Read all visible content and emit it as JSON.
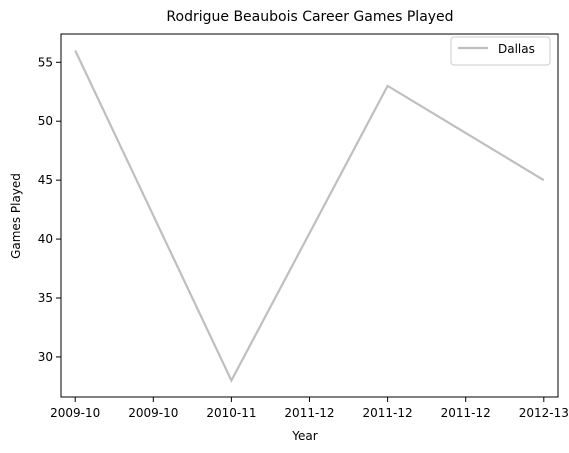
{
  "chart_data": {
    "type": "line",
    "title": "Rodrigue Beaubois Career Games Played",
    "xlabel": "Year",
    "ylabel": "Games Played",
    "x": [
      0,
      1,
      2,
      3
    ],
    "xlim": [
      -0.0909,
      3.0909
    ],
    "ylim": [
      26.6,
      57.4
    ],
    "x_ticks": [
      0,
      0.5,
      1,
      1.5,
      2,
      2.5,
      3
    ],
    "x_tick_labels": [
      "2009-10",
      "2009-10",
      "2010-11",
      "2011-12",
      "2011-12",
      "2011-12",
      "2012-13"
    ],
    "y_ticks": [
      30,
      35,
      40,
      45,
      50,
      55
    ],
    "series": [
      {
        "name": "Dallas",
        "values": [
          56,
          28,
          53,
          45
        ],
        "color": "#bfbfbf"
      }
    ],
    "grid": false,
    "legend": "top-right"
  }
}
